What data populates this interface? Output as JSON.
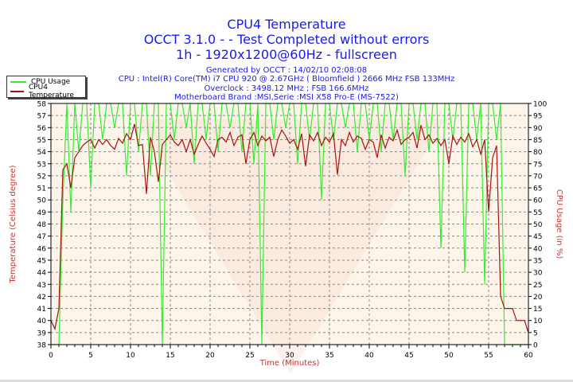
{
  "header": {
    "title": "CPU4 Temperature",
    "subtitle": "OCCT 3.1.0 -  - Test Completed without errors",
    "mode": "1h - 1920x1200@60Hz - fullscreen",
    "generated": "Generated by OCCT : 14/02/10 02:08:08",
    "cpu": "CPU : Intel(R) Core(TM) i7 CPU 920 @ 2.67GHz ( Bloomfield ) 2666 MHz FSB 133MHz",
    "overclock": "Overclock : 3498.12 MHz ; FSB 166.6MHz",
    "motherboard": "Motherboard Brand :MSI,Serie :MSI X58 Pro-E (MS-7522)"
  },
  "colors": {
    "cpu": "#33ee33",
    "temp": "#aa1111",
    "title": "#1a1aee",
    "axis_label": "#cc3333",
    "plot_bg": "#fdf5ea"
  },
  "chart_data": {
    "type": "line",
    "title": "CPU4 Temperature",
    "xlabel": "Time (Minutes)",
    "ylabel": "Temperature (Celsius degree)",
    "y2label": "CPU Usage (in %)",
    "xlim": [
      0,
      60
    ],
    "ylim": [
      38,
      58
    ],
    "y2lim": [
      0,
      100
    ],
    "grid": true,
    "legend": "top-left",
    "xticks": [
      "0",
      "5",
      "10",
      "15",
      "20",
      "25",
      "30",
      "35",
      "40",
      "45",
      "50",
      "55",
      "60"
    ],
    "yticks": [
      "38",
      "39",
      "40",
      "41",
      "42",
      "43",
      "44",
      "45",
      "46",
      "47",
      "48",
      "49",
      "50",
      "51",
      "52",
      "53",
      "54",
      "55",
      "56",
      "57",
      "58"
    ],
    "y2ticks": [
      "0",
      "5",
      "10",
      "15",
      "20",
      "25",
      "30",
      "35",
      "40",
      "45",
      "50",
      "55",
      "60",
      "65",
      "70",
      "75",
      "80",
      "85",
      "90",
      "95",
      "100"
    ],
    "x_step": 0.5,
    "series": [
      {
        "name": "CPU Usage",
        "axis": "right",
        "values": [
          0,
          0,
          0,
          60,
          100,
          55,
          100,
          80,
          100,
          100,
          65,
          100,
          100,
          85,
          100,
          100,
          90,
          100,
          100,
          70,
          100,
          100,
          80,
          100,
          100,
          70,
          100,
          100,
          0,
          100,
          100,
          85,
          100,
          100,
          90,
          100,
          75,
          100,
          100,
          85,
          100,
          100,
          80,
          100,
          100,
          90,
          100,
          100,
          80,
          100,
          100,
          75,
          100,
          0,
          100,
          100,
          85,
          100,
          100,
          90,
          100,
          100,
          75,
          100,
          100,
          85,
          100,
          100,
          60,
          100,
          100,
          85,
          100,
          100,
          90,
          100,
          100,
          80,
          100,
          100,
          85,
          100,
          100,
          80,
          100,
          100,
          85,
          100,
          100,
          70,
          100,
          100,
          85,
          100,
          100,
          80,
          100,
          100,
          40,
          100,
          100,
          85,
          100,
          100,
          30,
          100,
          100,
          85,
          100,
          25,
          100,
          100,
          85,
          100,
          0,
          0,
          0,
          0,
          0,
          0,
          0
        ]
      },
      {
        "name": "CPU4 Temperature",
        "axis": "left",
        "values": [
          40,
          39.3,
          41,
          52.5,
          53,
          51,
          53.5,
          54,
          54.5,
          54.8,
          55,
          54.3,
          55,
          54.6,
          55,
          54.5,
          54.2,
          55.1,
          54.7,
          55.5,
          55,
          56.3,
          54.5,
          54.6,
          50.5,
          55.2,
          54,
          51.5,
          54.6,
          55,
          55.4,
          54.8,
          54.5,
          55,
          54,
          55,
          53.8,
          54.6,
          55.3,
          54.7,
          54.2,
          53.6,
          55,
          55.2,
          54.8,
          55.6,
          54.5,
          55.2,
          55.4,
          53,
          55,
          55.6,
          54.5,
          55.3,
          54.9,
          55.2,
          53.6,
          55,
          55.8,
          55.3,
          54.7,
          55,
          54.2,
          55.5,
          52.8,
          55.4,
          54.9,
          55.6,
          54.5,
          55.2,
          54.8,
          55.5,
          52.1,
          55,
          54.5,
          55.6,
          54.8,
          55.3,
          55.1,
          54.2,
          55,
          54.8,
          53.5,
          55.4,
          54.3,
          55.2,
          54.9,
          55.8,
          54.6,
          55,
          55.2,
          55.6,
          54.3,
          56.2,
          55,
          55.4,
          54.7,
          55.1,
          54.5,
          55,
          53,
          55.3,
          54.6,
          55.2,
          54.8,
          55.5,
          54.4,
          55,
          53.8,
          55,
          49,
          53.5,
          54.5,
          42,
          41,
          41,
          41,
          40,
          40,
          40,
          39
        ]
      }
    ]
  }
}
